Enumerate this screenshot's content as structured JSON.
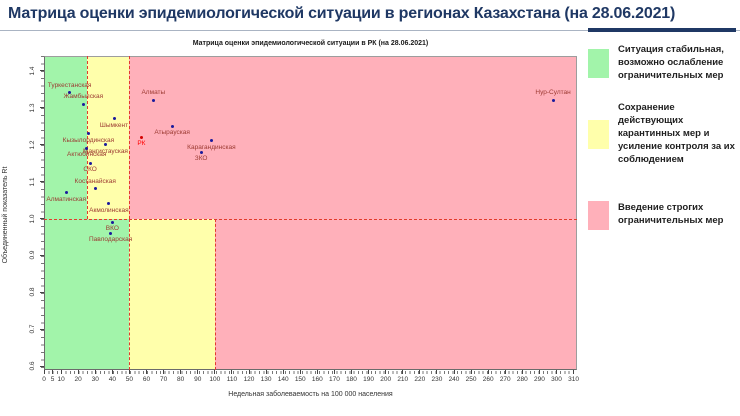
{
  "header": {
    "title": "Матрица оценки эпидемиологической ситуации в регионах Казахстана (на 28.06.2021)"
  },
  "chart_data": {
    "type": "scatter",
    "title": "Матрица оценки эпидемиологической ситуации в РК (на 28.06.2021)",
    "xlabel": "Недельная заболеваемость на 100 000 населения",
    "ylabel": "Объединенный показатель Rt",
    "xlim": [
      0,
      312
    ],
    "ylim": [
      0.59,
      1.44
    ],
    "grid": false,
    "legend_position": "right",
    "x_ticks": [
      0,
      5,
      10,
      20,
      30,
      40,
      50,
      60,
      70,
      80,
      90,
      100,
      110,
      120,
      130,
      140,
      150,
      160,
      170,
      180,
      190,
      200,
      210,
      220,
      230,
      240,
      250,
      260,
      270,
      280,
      290,
      300,
      310
    ],
    "y_ticks": [
      0.6,
      0.7,
      0.8,
      0.9,
      1.0,
      1.1,
      1.2,
      1.3,
      1.4
    ],
    "zones": {
      "split_r": 1.0,
      "upper": [
        {
          "x0": 0,
          "x1": 25,
          "color": "green"
        },
        {
          "x0": 25,
          "x1": 50,
          "color": "yellow"
        },
        {
          "x0": 50,
          "x1": 312,
          "color": "pink"
        }
      ],
      "lower": [
        {
          "x0": 0,
          "x1": 50,
          "color": "green"
        },
        {
          "x0": 50,
          "x1": 100,
          "color": "yellow"
        },
        {
          "x0": 100,
          "x1": 312,
          "color": "pink"
        }
      ]
    },
    "dashed_lines": {
      "horizontal_r": 1.0,
      "vertical_upper": [
        25,
        50
      ],
      "vertical_lower": [
        50,
        100
      ]
    },
    "points": [
      {
        "name": "Туркестанская",
        "x": 15,
        "r": 1.34,
        "label_pos": "above"
      },
      {
        "name": "Жамбылская",
        "x": 23,
        "r": 1.31,
        "label_pos": "above"
      },
      {
        "name": "Алматы",
        "x": 64,
        "r": 1.32,
        "label_pos": "above"
      },
      {
        "name": "Нур-Султан",
        "x": 298,
        "r": 1.32,
        "label_pos": "above"
      },
      {
        "name": "Шымкент",
        "x": 41,
        "r": 1.27,
        "label_pos": "below"
      },
      {
        "name": "Атырауская",
        "x": 75,
        "r": 1.25,
        "label_pos": "below"
      },
      {
        "name": "Кызылординская",
        "x": 26,
        "r": 1.23,
        "label_pos": "below"
      },
      {
        "name": "РК",
        "x": 57,
        "r": 1.22,
        "label_pos": "below",
        "highlight": true
      },
      {
        "name": "Карагандинская",
        "x": 98,
        "r": 1.21,
        "label_pos": "below"
      },
      {
        "name": "Мангистауская",
        "x": 36,
        "r": 1.2,
        "label_pos": "below"
      },
      {
        "name": "Актюбинская",
        "x": 25,
        "r": 1.19,
        "label_pos": "below"
      },
      {
        "name": "ЗКО",
        "x": 92,
        "r": 1.18,
        "label_pos": "below"
      },
      {
        "name": "СКО",
        "x": 27,
        "r": 1.15,
        "label_pos": "below"
      },
      {
        "name": "Костанайская",
        "x": 30,
        "r": 1.08,
        "label_pos": "above"
      },
      {
        "name": "Алматинская",
        "x": 13,
        "r": 1.07,
        "label_pos": "below"
      },
      {
        "name": "Акмолинская",
        "x": 38,
        "r": 1.04,
        "label_pos": "below"
      },
      {
        "name": "ВКО",
        "x": 40,
        "r": 0.99,
        "label_pos": "below"
      },
      {
        "name": "Павлодарская",
        "x": 39,
        "r": 0.96,
        "label_pos": "below"
      }
    ]
  },
  "legend": {
    "items": [
      {
        "color_key": "green",
        "text": "Ситуация стабильная, возможно ослабление ограничительных мер"
      },
      {
        "color_key": "yellow",
        "text": "Сохранение действующих карантинных мер и усиление контроля за их соблюдением"
      },
      {
        "color_key": "pink",
        "text": "Введение строгих ограничительных мер"
      }
    ]
  },
  "colors": {
    "title": "#1F3864",
    "zones": {
      "green": "#A2F4AA",
      "yellow": "#FFFFAB",
      "pink": "#FFB0BA"
    },
    "point": "#1A1A9C",
    "point_highlight": "#D40000",
    "label": "#9C3A32",
    "label_highlight": "#FF0000",
    "dashed_line": "#E23B2E"
  }
}
